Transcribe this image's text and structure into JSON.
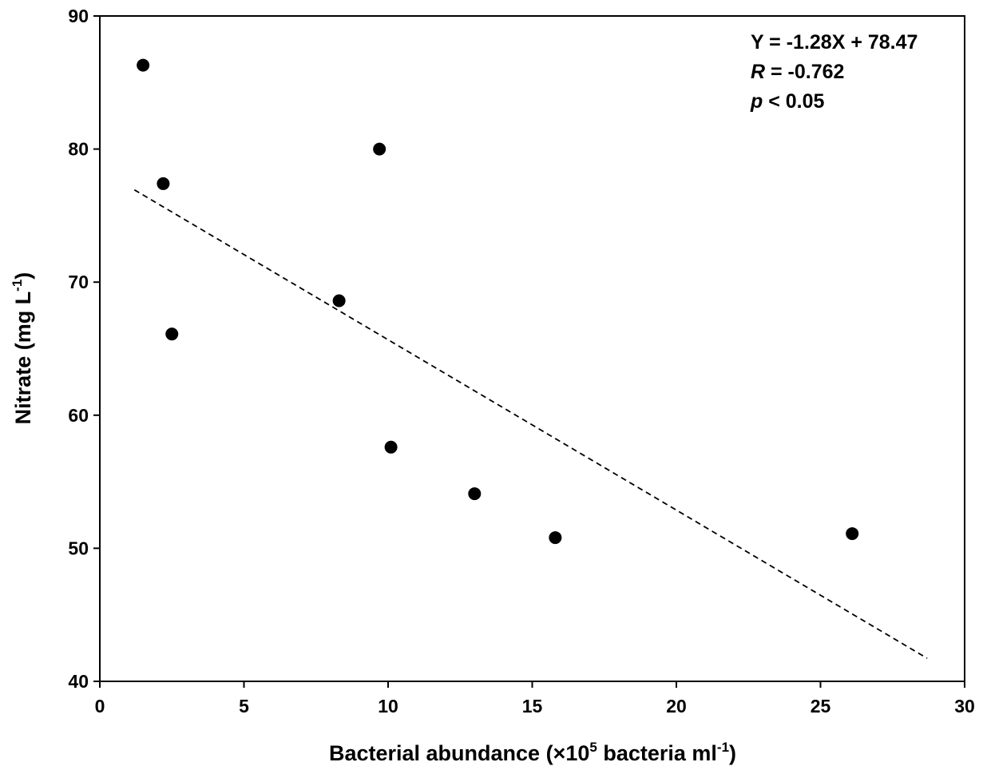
{
  "chart_data": {
    "type": "scatter",
    "title": "",
    "xlabel": {
      "main": "Bacterial abundance (×10",
      "exp": "5",
      "mid": " bacteria ml",
      "exp2": "-1",
      "close": ")"
    },
    "ylabel": {
      "main": "Nitrate (mg L",
      "exp": "-1",
      "close": ")"
    },
    "xlim": [
      0,
      30
    ],
    "ylim": [
      40,
      90
    ],
    "xticks": [
      0,
      5,
      10,
      15,
      20,
      25,
      30
    ],
    "yticks": [
      40,
      50,
      60,
      70,
      80,
      90
    ],
    "xtick_labels": [
      "0",
      "5",
      "10",
      "15",
      "20",
      "25",
      "30"
    ],
    "ytick_labels": [
      "40",
      "50",
      "60",
      "70",
      "80",
      "90"
    ],
    "grid": false,
    "series": [
      {
        "points": [
          {
            "x": 1.5,
            "y": 86.3
          },
          {
            "x": 2.2,
            "y": 77.4
          },
          {
            "x": 2.5,
            "y": 66.1
          },
          {
            "x": 8.3,
            "y": 68.6
          },
          {
            "x": 9.7,
            "y": 80.0
          },
          {
            "x": 10.1,
            "y": 57.6
          },
          {
            "x": 13.0,
            "y": 54.1
          },
          {
            "x": 15.8,
            "y": 50.8
          },
          {
            "x": 26.1,
            "y": 51.1
          }
        ],
        "color": "#000000"
      }
    ],
    "fit_line": {
      "slope": -1.28,
      "intercept": 78.47,
      "x_range": [
        1.2,
        28.7
      ],
      "style": "dashed"
    },
    "annotations": {
      "equation": "Y = -1.28X + 78.47",
      "r_symbol": "R",
      "r_value": " = -0.762",
      "p_symbol": "p",
      "p_value": " < 0.05"
    }
  }
}
